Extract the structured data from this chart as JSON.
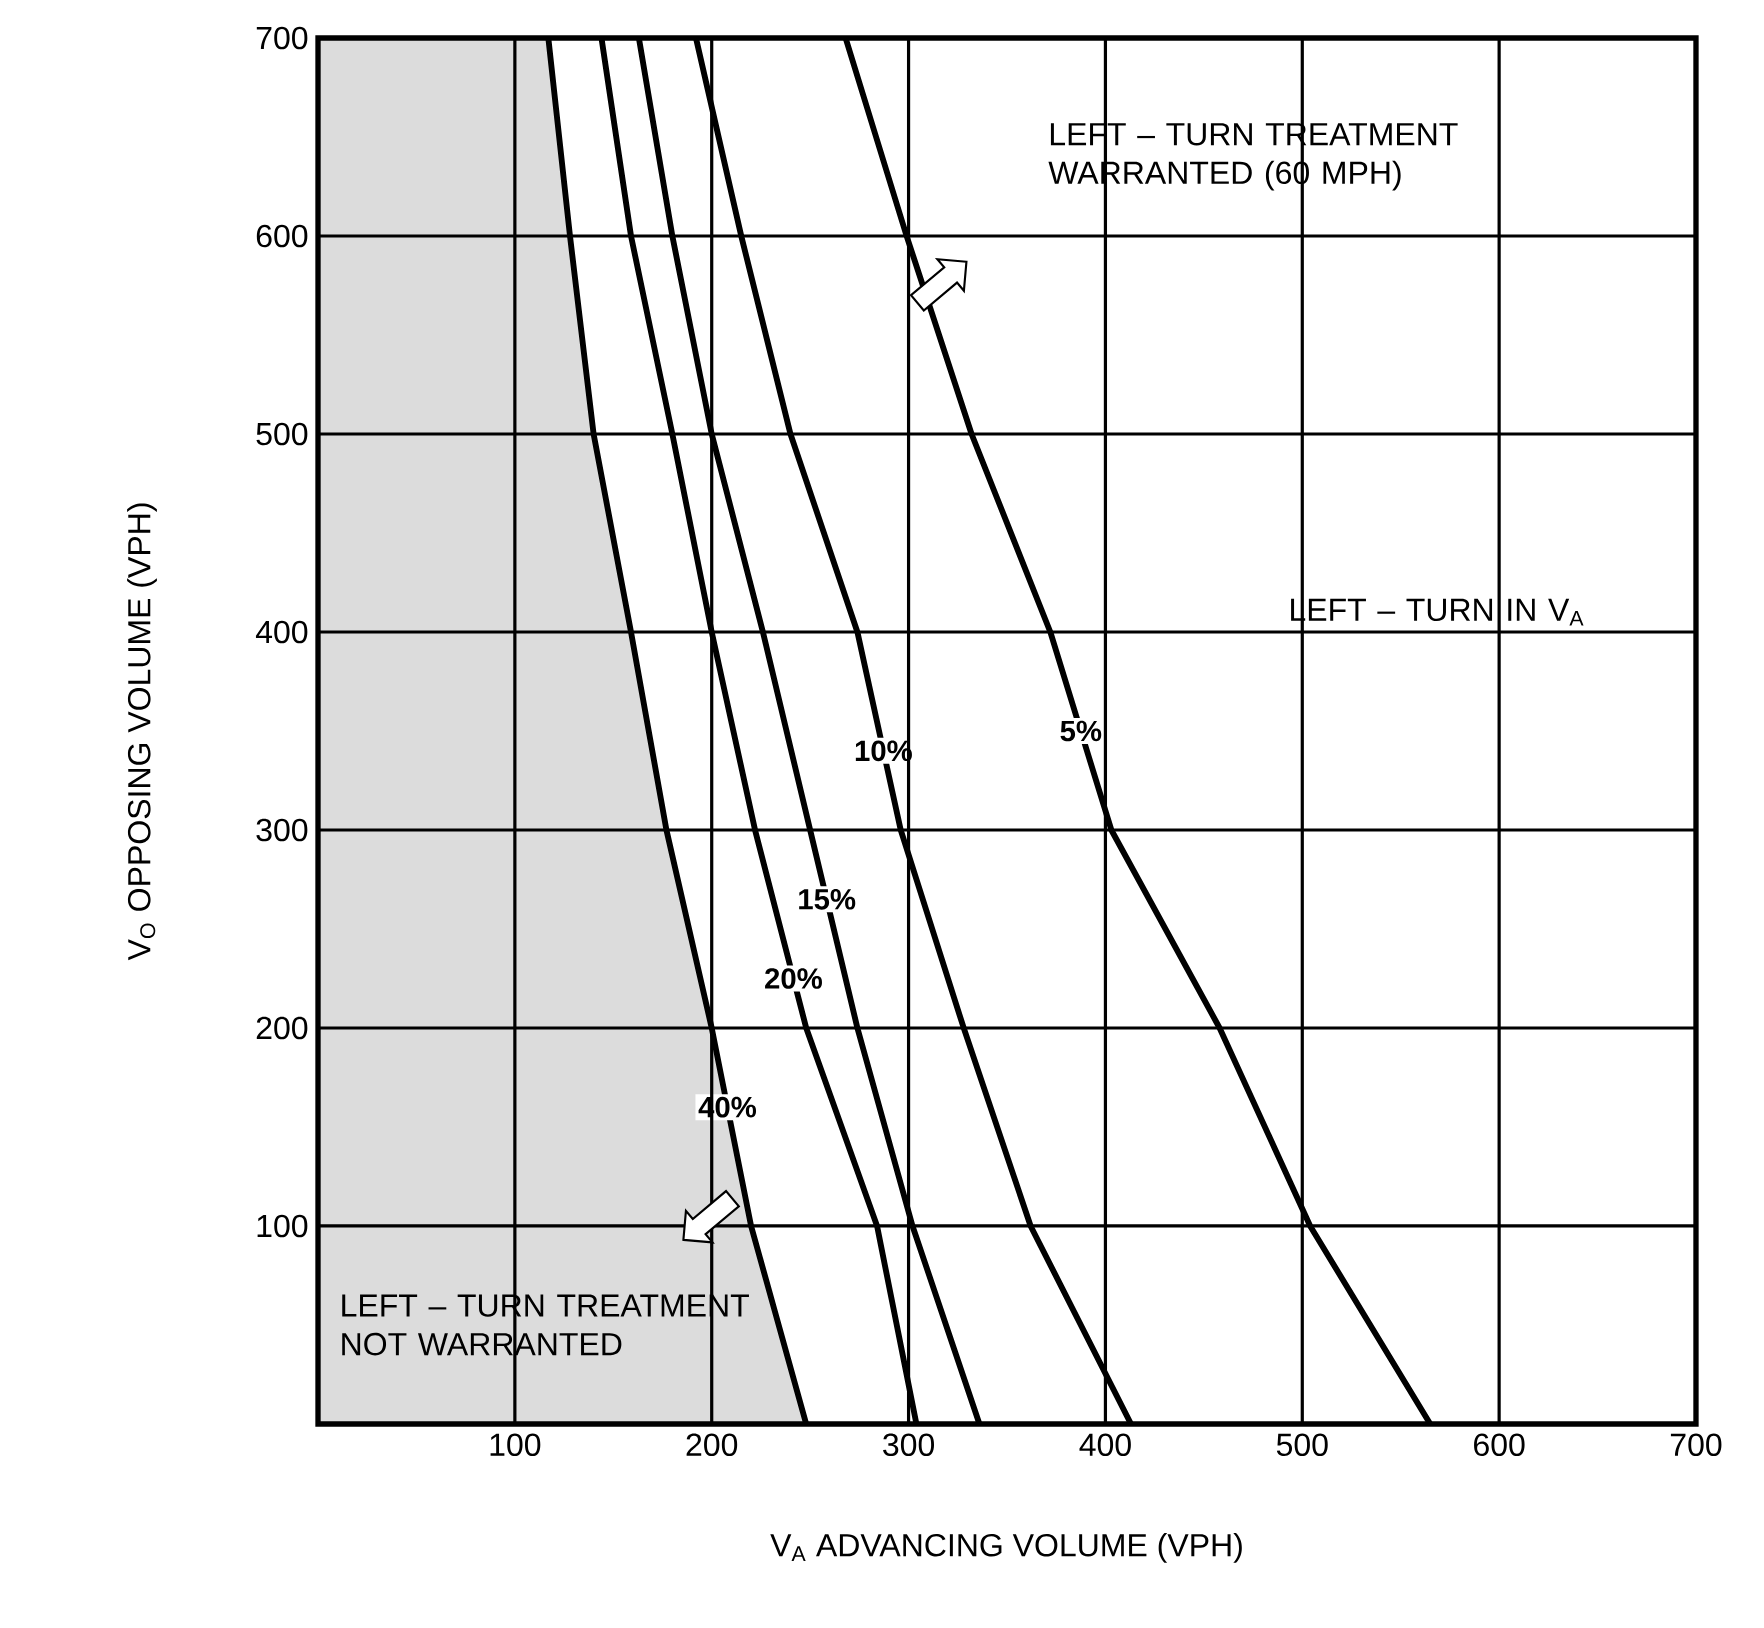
{
  "chart_data": {
    "type": "line",
    "xlabel": "V$_{A}$ ADVANCING VOLUME (VPH)",
    "ylabel": "V$_{O}$ OPPOSING VOLUME (VPH)",
    "xlim": [
      0,
      700
    ],
    "ylim": [
      0,
      700
    ],
    "xticks": [
      100,
      200,
      300,
      400,
      500,
      600,
      700
    ],
    "yticks": [
      100,
      200,
      300,
      400,
      500,
      600,
      700
    ],
    "grid": true,
    "series": [
      {
        "name": "5%",
        "color": "#000000",
        "x": [
          268,
          299,
          332,
          372,
          403,
          458,
          504,
          565
        ],
        "values": [
          700,
          600,
          500,
          400,
          300,
          200,
          100,
          0
        ]
      },
      {
        "name": "10%",
        "color": "#000000",
        "x": [
          192,
          215,
          240,
          274,
          296,
          328,
          362,
          413
        ],
        "values": [
          700,
          600,
          500,
          400,
          300,
          200,
          100,
          0
        ]
      },
      {
        "name": "15%",
        "color": "#000000",
        "x": [
          163,
          180,
          200,
          226,
          250,
          274,
          302,
          336
        ],
        "values": [
          700,
          600,
          500,
          400,
          300,
          200,
          100,
          0
        ]
      },
      {
        "name": "20%",
        "color": "#000000",
        "x": [
          144,
          159,
          180,
          200,
          222,
          248,
          284,
          304
        ],
        "values": [
          700,
          600,
          500,
          400,
          300,
          200,
          100,
          0
        ]
      },
      {
        "name": "40%",
        "type": "area",
        "color": "#dcdcdc",
        "x": [
          0,
          117,
          128,
          140,
          159,
          177,
          200,
          220,
          248,
          0
        ],
        "values": [
          700,
          700,
          600,
          500,
          400,
          300,
          200,
          100,
          0,
          0
        ]
      }
    ],
    "annotations": [
      "LEFT – TURN TREATMENT WARRANTED (60 MPH)",
      "LEFT – TURN IN V$_{A}$",
      "LEFT – TURN TREATMENT NOT WARRANTED"
    ]
  }
}
